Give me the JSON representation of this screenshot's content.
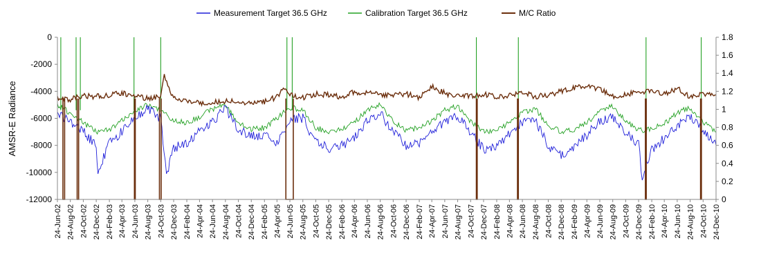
{
  "chart_data": {
    "type": "line",
    "title": "",
    "legend": {
      "placement": "top",
      "entries": [
        {
          "label": "Measurement Target 36.5 GHz",
          "color": "#1f1fd9"
        },
        {
          "label": "Calibration Target 36.5 GHz",
          "color": "#22a022"
        },
        {
          "label": "M/C Ratio",
          "color": "#6b2e0c"
        }
      ]
    },
    "y_left": {
      "label": "AMSR-E Radiance",
      "ylim": [
        -12000,
        0
      ],
      "ticks": [
        "0",
        "-2000",
        "-4000",
        "-6000",
        "-8000",
        "-10000",
        "-12000"
      ]
    },
    "y_right": {
      "label": "",
      "ylim": [
        0,
        1.8
      ],
      "ticks": [
        "1.8",
        "1.6",
        "1.4",
        "1.2",
        "1",
        "0.8",
        "0.6",
        "0.4",
        "0.2",
        "0"
      ]
    },
    "x_axis": {
      "start": "2002-06-24",
      "end": "2010-12-24",
      "tick_labels": [
        "24-Jun-02",
        "24-Aug-02",
        "24-Oct-02",
        "24-Dec-02",
        "24-Feb-03",
        "24-Apr-03",
        "24-Jun-03",
        "24-Aug-03",
        "24-Oct-03",
        "24-Dec-03",
        "24-Feb-04",
        "24-Apr-04",
        "24-Jun-04",
        "24-Aug-04",
        "24-Oct-04",
        "24-Dec-04",
        "24-Feb-05",
        "24-Apr-05",
        "24-Jun-05",
        "24-Aug-05",
        "24-Oct-05",
        "24-Dec-05",
        "24-Feb-06",
        "24-Apr-06",
        "24-Jun-06",
        "24-Aug-06",
        "24-Oct-06",
        "24-Dec-06",
        "24-Feb-07",
        "24-Apr-07",
        "24-Jun-07",
        "24-Aug-07",
        "24-Oct-07",
        "24-Dec-07",
        "24-Feb-08",
        "24-Apr-08",
        "24-Jun-08",
        "24-Aug-08",
        "24-Oct-08",
        "24-Dec-08",
        "24-Feb-09",
        "24-Apr-09",
        "24-Jun-09",
        "24-Aug-09",
        "24-Oct-09",
        "24-Dec-09",
        "24-Feb-10",
        "24-Apr-10",
        "24-Jun-10",
        "24-Aug-10",
        "24-Oct-10",
        "24-Dec-10"
      ]
    },
    "grid": false,
    "series": [
      {
        "name": "Measurement Target 36.5 GHz",
        "axis": "left",
        "color": "#1f1fd9",
        "points": [
          [
            "2002-06-24",
            -5700
          ],
          [
            "2002-08-24",
            -6200
          ],
          [
            "2002-10-24",
            -7000
          ],
          [
            "2002-12-24",
            -8000
          ],
          [
            "2003-01-01",
            -10000
          ],
          [
            "2003-02-24",
            -7800
          ],
          [
            "2003-04-24",
            -7000
          ],
          [
            "2003-06-24",
            -5800
          ],
          [
            "2003-08-24",
            -5300
          ],
          [
            "2003-10-24",
            -6000
          ],
          [
            "2003-11-20",
            -10200
          ],
          [
            "2003-12-24",
            -8200
          ],
          [
            "2004-02-24",
            -7800
          ],
          [
            "2004-04-24",
            -7000
          ],
          [
            "2004-06-24",
            -6200
          ],
          [
            "2004-08-24",
            -5300
          ],
          [
            "2004-10-24",
            -6800
          ],
          [
            "2004-12-24",
            -7300
          ],
          [
            "2005-02-24",
            -7300
          ],
          [
            "2005-04-24",
            -7800
          ],
          [
            "2005-05-24",
            -7000
          ],
          [
            "2005-06-24",
            -6000
          ],
          [
            "2005-08-24",
            -6000
          ],
          [
            "2005-10-24",
            -7800
          ],
          [
            "2005-12-24",
            -8200
          ],
          [
            "2006-02-24",
            -8000
          ],
          [
            "2006-04-24",
            -7500
          ],
          [
            "2006-06-24",
            -6200
          ],
          [
            "2006-08-24",
            -5600
          ],
          [
            "2006-10-24",
            -7000
          ],
          [
            "2006-12-24",
            -8000
          ],
          [
            "2007-02-24",
            -7800
          ],
          [
            "2007-04-24",
            -7000
          ],
          [
            "2007-06-24",
            -6200
          ],
          [
            "2007-08-24",
            -5800
          ],
          [
            "2007-10-24",
            -7000
          ],
          [
            "2007-12-24",
            -8300
          ],
          [
            "2008-02-24",
            -8000
          ],
          [
            "2008-04-24",
            -7200
          ],
          [
            "2008-06-24",
            -6300
          ],
          [
            "2008-08-24",
            -6200
          ],
          [
            "2008-10-24",
            -8000
          ],
          [
            "2008-12-24",
            -8800
          ],
          [
            "2009-02-24",
            -8200
          ],
          [
            "2009-04-24",
            -7200
          ],
          [
            "2009-06-24",
            -6200
          ],
          [
            "2009-08-24",
            -5900
          ],
          [
            "2009-10-24",
            -7000
          ],
          [
            "2009-12-24",
            -8000
          ],
          [
            "2010-01-10",
            -10400
          ],
          [
            "2010-02-24",
            -8300
          ],
          [
            "2010-04-24",
            -7500
          ],
          [
            "2010-06-24",
            -6500
          ],
          [
            "2010-08-24",
            -5900
          ],
          [
            "2010-10-24",
            -7000
          ],
          [
            "2010-12-24",
            -8000
          ]
        ]
      },
      {
        "name": "Calibration Target 36.5 GHz",
        "axis": "left",
        "color": "#22a022",
        "points": [
          [
            "2002-06-24",
            -5000
          ],
          [
            "2002-08-24",
            -5600
          ],
          [
            "2002-10-24",
            -6300
          ],
          [
            "2002-12-24",
            -7000
          ],
          [
            "2003-02-24",
            -6800
          ],
          [
            "2003-04-24",
            -6200
          ],
          [
            "2003-06-24",
            -5400
          ],
          [
            "2003-08-24",
            -5000
          ],
          [
            "2003-10-24",
            -5400
          ],
          [
            "2003-12-24",
            -6200
          ],
          [
            "2004-02-24",
            -6300
          ],
          [
            "2004-04-24",
            -5900
          ],
          [
            "2004-06-24",
            -5300
          ],
          [
            "2004-08-24",
            -5000
          ],
          [
            "2004-10-24",
            -6400
          ],
          [
            "2004-12-24",
            -6800
          ],
          [
            "2005-02-24",
            -6700
          ],
          [
            "2005-04-24",
            -6000
          ],
          [
            "2005-06-24",
            -5200
          ],
          [
            "2005-08-24",
            -5400
          ],
          [
            "2005-10-24",
            -6700
          ],
          [
            "2005-12-24",
            -7000
          ],
          [
            "2006-02-24",
            -6800
          ],
          [
            "2006-04-24",
            -6300
          ],
          [
            "2006-06-24",
            -5400
          ],
          [
            "2006-08-24",
            -5000
          ],
          [
            "2006-10-24",
            -6200
          ],
          [
            "2006-12-24",
            -6900
          ],
          [
            "2007-02-24",
            -6700
          ],
          [
            "2007-04-24",
            -6200
          ],
          [
            "2007-06-24",
            -5400
          ],
          [
            "2007-08-24",
            -5100
          ],
          [
            "2007-10-24",
            -6200
          ],
          [
            "2007-12-24",
            -7000
          ],
          [
            "2008-02-24",
            -6900
          ],
          [
            "2008-04-24",
            -6300
          ],
          [
            "2008-06-24",
            -5600
          ],
          [
            "2008-08-24",
            -5300
          ],
          [
            "2008-10-24",
            -6500
          ],
          [
            "2008-12-24",
            -7000
          ],
          [
            "2009-02-24",
            -6800
          ],
          [
            "2009-04-24",
            -6300
          ],
          [
            "2009-06-24",
            -5500
          ],
          [
            "2009-08-24",
            -5100
          ],
          [
            "2009-10-24",
            -6200
          ],
          [
            "2009-12-24",
            -6900
          ],
          [
            "2010-02-24",
            -6800
          ],
          [
            "2010-04-24",
            -6400
          ],
          [
            "2010-06-24",
            -5600
          ],
          [
            "2010-08-24",
            -5200
          ],
          [
            "2010-10-24",
            -6300
          ],
          [
            "2010-12-24",
            -7000
          ]
        ],
        "spikes_to_top": [
          "2002-07-10",
          "2002-09-20",
          "2002-10-10",
          "2003-06-20",
          "2003-10-24",
          "2005-06-10",
          "2005-07-05",
          "2007-11-20",
          "2008-06-05",
          "2010-01-28",
          "2010-10-15"
        ]
      },
      {
        "name": "M/C Ratio",
        "axis": "right",
        "color": "#6b2e0c",
        "points": [
          [
            "2002-06-24",
            1.13
          ],
          [
            "2002-08-24",
            1.11
          ],
          [
            "2002-10-24",
            1.15
          ],
          [
            "2002-12-24",
            1.14
          ],
          [
            "2003-02-24",
            1.16
          ],
          [
            "2003-04-24",
            1.18
          ],
          [
            "2003-06-24",
            1.15
          ],
          [
            "2003-08-24",
            1.12
          ],
          [
            "2003-10-24",
            1.15
          ],
          [
            "2003-11-10",
            1.37
          ],
          [
            "2003-12-24",
            1.12
          ],
          [
            "2004-02-24",
            1.08
          ],
          [
            "2004-04-24",
            1.07
          ],
          [
            "2004-06-24",
            1.08
          ],
          [
            "2004-08-24",
            1.09
          ],
          [
            "2004-10-24",
            1.08
          ],
          [
            "2004-12-24",
            1.07
          ],
          [
            "2005-02-24",
            1.08
          ],
          [
            "2005-04-24",
            1.14
          ],
          [
            "2005-05-24",
            1.24
          ],
          [
            "2005-06-24",
            1.16
          ],
          [
            "2005-08-24",
            1.13
          ],
          [
            "2005-10-24",
            1.17
          ],
          [
            "2005-12-24",
            1.16
          ],
          [
            "2006-02-24",
            1.14
          ],
          [
            "2006-04-24",
            1.19
          ],
          [
            "2006-06-24",
            1.18
          ],
          [
            "2006-08-24",
            1.16
          ],
          [
            "2006-10-24",
            1.15
          ],
          [
            "2006-12-24",
            1.17
          ],
          [
            "2007-02-24",
            1.13
          ],
          [
            "2007-04-24",
            1.25
          ],
          [
            "2007-06-24",
            1.18
          ],
          [
            "2007-08-24",
            1.14
          ],
          [
            "2007-10-24",
            1.15
          ],
          [
            "2007-12-24",
            1.17
          ],
          [
            "2008-02-24",
            1.14
          ],
          [
            "2008-04-24",
            1.15
          ],
          [
            "2008-06-24",
            1.19
          ],
          [
            "2008-08-24",
            1.14
          ],
          [
            "2008-10-24",
            1.16
          ],
          [
            "2008-12-24",
            1.2
          ],
          [
            "2009-02-24",
            1.24
          ],
          [
            "2009-04-24",
            1.26
          ],
          [
            "2009-06-24",
            1.22
          ],
          [
            "2009-08-24",
            1.15
          ],
          [
            "2009-10-24",
            1.16
          ],
          [
            "2009-12-24",
            1.2
          ],
          [
            "2010-02-24",
            1.19
          ],
          [
            "2010-04-24",
            1.17
          ],
          [
            "2010-06-24",
            1.23
          ],
          [
            "2010-08-24",
            1.14
          ],
          [
            "2010-10-24",
            1.17
          ],
          [
            "2010-12-24",
            1.16
          ]
        ],
        "spikes_to_zero": [
          [
            "2002-07-20",
            "2002-07-28"
          ],
          [
            "2002-09-25",
            "2002-10-02"
          ],
          [
            "2003-06-22",
            "2003-06-26"
          ],
          [
            "2003-10-18",
            "2003-10-26"
          ],
          [
            "2005-06-05",
            "2005-07-10"
          ],
          [
            "2007-11-20",
            "2007-11-24"
          ],
          [
            "2008-06-01",
            "2008-06-05"
          ],
          [
            "2010-01-25",
            "2010-01-29"
          ],
          [
            "2010-10-12",
            "2010-10-16"
          ]
        ]
      }
    ]
  }
}
